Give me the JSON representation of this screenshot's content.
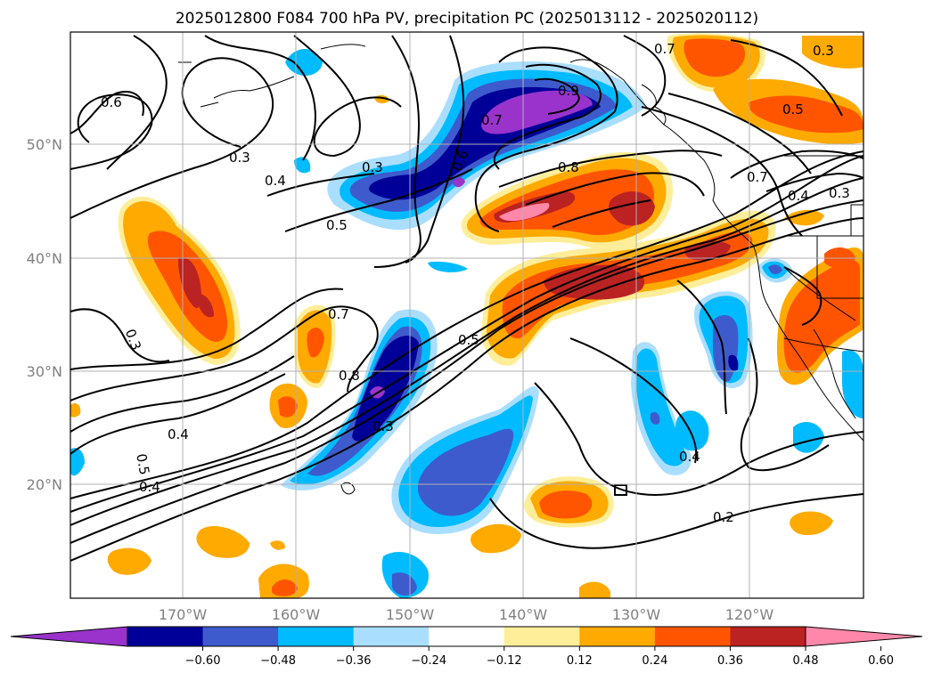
{
  "title": "2025012800 F084 700 hPa PV, precipitation PC (2025013112 - 2025020112)",
  "map": {
    "lon_labels": [
      "170°W",
      "160°W",
      "150°W",
      "140°W",
      "130°W",
      "120°W"
    ],
    "lat_labels": [
      "50°N",
      "40°N",
      "30°N",
      "20°N"
    ],
    "contour_labels": [
      "0.6",
      "0.3",
      "0.4",
      "0.3",
      "0.5",
      "0.6",
      "0.7",
      "0.9",
      "0.8",
      "0.7",
      "0.5",
      "0.7",
      "0.4",
      "0.3",
      "0.7",
      "0.5",
      "0.3",
      "0.8",
      "0.3",
      "0.4",
      "0.5",
      "0.4",
      "0.4",
      "0.2",
      "0.3"
    ]
  },
  "colorbar": {
    "ticks": [
      "−0.60",
      "−0.48",
      "−0.36",
      "−0.24",
      "−0.12",
      "0.12",
      "0.24",
      "0.36",
      "0.48",
      "0.60"
    ],
    "colors": [
      "#9933cc",
      "#000099",
      "#3d5bcc",
      "#00bbff",
      "#aadeff",
      "#ffffff",
      "#ffee99",
      "#ffaa00",
      "#ff5500",
      "#bb2222",
      "#ff88aa"
    ]
  }
}
